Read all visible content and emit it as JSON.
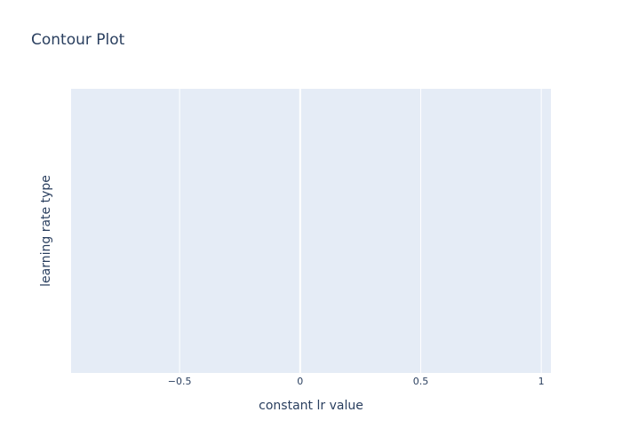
{
  "chart_data": {
    "type": "contour",
    "title": "Contour Plot",
    "xlabel": "constant lr value",
    "ylabel": "learning rate type",
    "x_ticks": [
      "−0.5",
      "0",
      "0.5",
      "1"
    ],
    "x_tick_values": [
      -0.5,
      0,
      0.5,
      1
    ],
    "xlim": [
      -0.95,
      1.04
    ],
    "y_ticks": [],
    "series": [],
    "grid": true,
    "legend": "none",
    "colors": {
      "plot_background": "#E5ECF6",
      "gridline": "#ffffff",
      "text": "#2a3f5f",
      "page_background": "#ffffff"
    }
  }
}
